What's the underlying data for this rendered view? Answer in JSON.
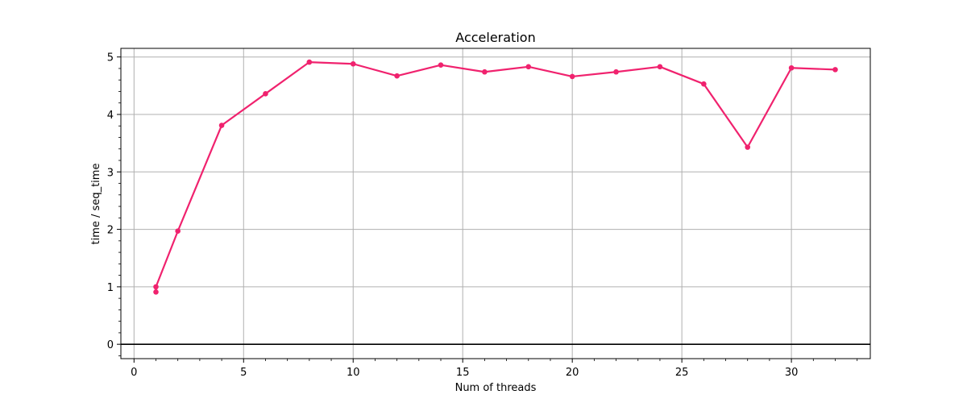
{
  "chart_data": {
    "type": "line",
    "title": "Acceleration",
    "xlabel": "Num of threads",
    "ylabel": "time / seq_time",
    "xlim": [
      -0.6,
      33.6
    ],
    "ylim": [
      -0.25,
      5.15
    ],
    "xticks": [
      0,
      5,
      10,
      15,
      20,
      25,
      30
    ],
    "yticks": [
      0,
      1,
      2,
      3,
      4,
      5
    ],
    "grid": true,
    "baseline_y": 0,
    "series": [
      {
        "color": "#f0226e",
        "x": [
          1,
          1,
          2,
          4,
          6,
          8,
          10,
          12,
          14,
          16,
          18,
          20,
          22,
          24,
          26,
          28,
          30,
          32
        ],
        "y": [
          0.91,
          1.0,
          1.97,
          3.81,
          4.36,
          4.91,
          4.88,
          4.67,
          4.86,
          4.74,
          4.83,
          4.66,
          4.74,
          4.83,
          4.53,
          3.43,
          4.81,
          4.78
        ]
      }
    ]
  }
}
